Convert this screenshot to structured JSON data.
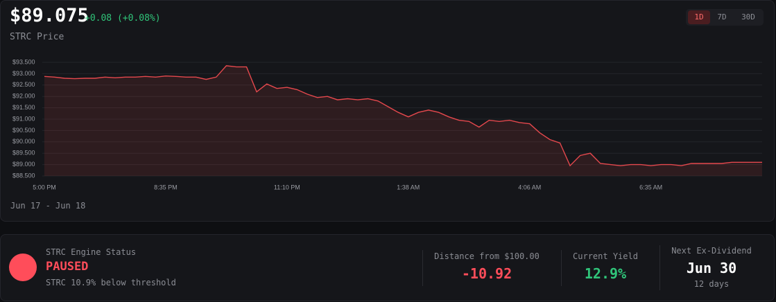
{
  "header": {
    "price": "$89.075",
    "change": "+0.08 (+0.08%)",
    "subtitle": "STRC Price",
    "ranges": [
      "1D",
      "7D",
      "30D"
    ],
    "date_range": "Jun 17 - Jun 18"
  },
  "chart_data": {
    "type": "line",
    "color": "#e5484d",
    "grid": true,
    "categories": [
      "5:00 PM",
      null,
      null,
      null,
      null,
      null,
      null,
      null,
      null,
      null,
      null,
      null,
      "8:35 PM",
      null,
      null,
      null,
      null,
      null,
      null,
      null,
      null,
      null,
      null,
      null,
      "11:10 PM",
      null,
      null,
      null,
      null,
      null,
      null,
      null,
      null,
      null,
      null,
      null,
      "1:38 AM",
      null,
      null,
      null,
      null,
      null,
      null,
      null,
      null,
      null,
      null,
      null,
      "4:06 AM",
      null,
      null,
      null,
      null,
      null,
      null,
      null,
      null,
      null,
      null,
      null,
      "6:35 AM",
      null,
      null,
      null,
      null,
      null,
      null,
      null,
      null,
      null,
      null,
      null
    ],
    "values": [
      92.88,
      92.85,
      92.8,
      92.78,
      92.8,
      92.8,
      92.85,
      92.82,
      92.85,
      92.85,
      92.88,
      92.85,
      92.9,
      92.88,
      92.85,
      92.85,
      92.75,
      92.85,
      93.35,
      93.3,
      93.3,
      92.2,
      92.55,
      92.35,
      92.4,
      92.3,
      92.1,
      91.95,
      92.0,
      91.85,
      91.9,
      91.85,
      91.9,
      91.8,
      91.55,
      91.3,
      91.1,
      91.3,
      91.4,
      91.3,
      91.1,
      90.95,
      90.9,
      90.65,
      90.95,
      90.9,
      90.95,
      90.85,
      90.8,
      90.4,
      90.1,
      89.95,
      88.95,
      89.4,
      89.5,
      89.05,
      89.0,
      88.95,
      89.0,
      89.0,
      88.95,
      89.0,
      89.0,
      88.95,
      89.05,
      89.05,
      89.05,
      89.05,
      89.1,
      89.1,
      89.1,
      89.1
    ],
    "ylim": [
      88.5,
      93.5
    ],
    "yticks": [
      {
        "value": 88.5,
        "label": "$88.500"
      },
      {
        "value": 89,
        "label": "$89.000"
      },
      {
        "value": 89.5,
        "label": "$89.500"
      },
      {
        "value": 90,
        "label": "$90.000"
      },
      {
        "value": 90.5,
        "label": "$90.500"
      },
      {
        "value": 91,
        "label": "$91.000"
      },
      {
        "value": 91.5,
        "label": "$91.500"
      },
      {
        "value": 92,
        "label": "$92.000"
      },
      {
        "value": 92.5,
        "label": "$92.500"
      },
      {
        "value": 93,
        "label": "$93.000"
      },
      {
        "value": 93.5,
        "label": "$93.500"
      }
    ]
  },
  "status": {
    "label": "STRC Engine Status",
    "state": "PAUSED",
    "note": "STRC 10.9% below threshold",
    "stats": [
      {
        "label": "Distance from $100.00",
        "value": "-10.92"
      },
      {
        "label": "Current Yield",
        "value": "12.9%"
      },
      {
        "label": "Next Ex-Dividend",
        "value": "Jun 30",
        "sub": "12 days"
      }
    ]
  }
}
